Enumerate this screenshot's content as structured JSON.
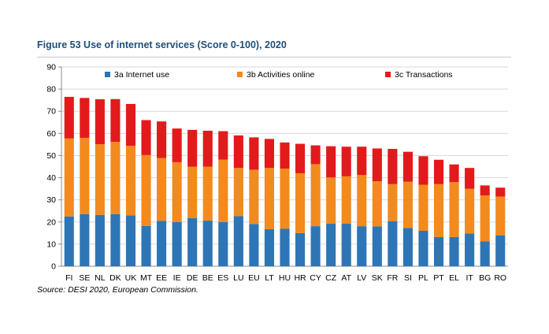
{
  "figure": {
    "title": "Figure 53 Use of internet services (Score 0-100), 2020",
    "source": "Source: DESI 2020, European Commission."
  },
  "chart_data": {
    "type": "bar",
    "stacked": true,
    "categories": [
      "FI",
      "SE",
      "NL",
      "DK",
      "UK",
      "MT",
      "EE",
      "IE",
      "DE",
      "BE",
      "ES",
      "LU",
      "EU",
      "LT",
      "HU",
      "HR",
      "CY",
      "CZ",
      "AT",
      "LV",
      "SK",
      "FR",
      "SI",
      "PL",
      "PT",
      "EL",
      "IT",
      "BG",
      "RO"
    ],
    "series": [
      {
        "name": "3a Internet use",
        "color": "#2e75b6",
        "values": [
          22.5,
          23.5,
          23.2,
          23.5,
          23.0,
          18.2,
          20.5,
          20.0,
          21.8,
          20.6,
          20.0,
          22.6,
          19.1,
          16.8,
          16.9,
          15.0,
          18.1,
          19.2,
          19.2,
          18.1,
          18.0,
          20.3,
          17.3,
          16.0,
          13.2,
          13.2,
          14.8,
          11.2,
          14.0
        ]
      },
      {
        "name": "3b Activities online",
        "color": "#f28a1e",
        "values": [
          35.2,
          34.5,
          31.9,
          32.7,
          31.4,
          32.0,
          28.4,
          27.0,
          23.2,
          24.4,
          28.2,
          21.8,
          24.5,
          27.6,
          27.2,
          27.0,
          28.0,
          20.9,
          21.4,
          23.1,
          20.4,
          16.8,
          20.9,
          20.8,
          23.9,
          24.8,
          20.2,
          20.8,
          17.5
        ]
      },
      {
        "name": "3c Transactions",
        "color": "#e31a1c",
        "values": [
          18.8,
          18.0,
          20.3,
          19.3,
          18.9,
          15.8,
          16.5,
          15.2,
          16.6,
          16.2,
          12.8,
          14.7,
          14.6,
          13.1,
          11.8,
          13.3,
          8.5,
          14.1,
          13.4,
          12.8,
          14.8,
          15.9,
          13.5,
          12.9,
          11.0,
          8.0,
          9.4,
          4.5,
          4.0
        ]
      }
    ],
    "ylim": [
      0,
      90
    ],
    "yticks": [
      0,
      10,
      20,
      30,
      40,
      50,
      60,
      70,
      80,
      90
    ],
    "grid": true,
    "legend": "top",
    "xlabel": "",
    "ylabel": ""
  }
}
